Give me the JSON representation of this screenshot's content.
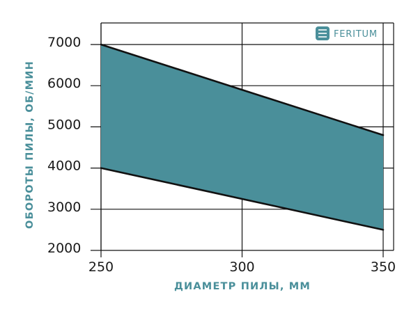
{
  "chart_data": {
    "type": "area",
    "title": "",
    "xlabel": "ДИАМЕТР ПИЛЫ, ММ",
    "ylabel": "ОБОРОТЫ ПИЛЫ, ОБ/МИН",
    "xlim": [
      250,
      350
    ],
    "ylim": [
      2000,
      7000
    ],
    "x_ticks": [
      "250",
      "300",
      "350"
    ],
    "y_ticks": [
      "2000",
      "3000",
      "4000",
      "5000",
      "6000",
      "7000"
    ],
    "grid": true,
    "series": [
      {
        "x": [
          250,
          350
        ],
        "values": [
          7000,
          4800
        ]
      },
      {
        "x": [
          250,
          350
        ],
        "values": [
          4000,
          2500
        ]
      }
    ],
    "fill_between": true,
    "fill_color": "#4a8f9a",
    "line_color": "#111111",
    "grid_color": "#111111"
  },
  "logo": {
    "text": "FERITUM",
    "color": "#4a8f9a",
    "icon": "feritum-logo-icon"
  }
}
